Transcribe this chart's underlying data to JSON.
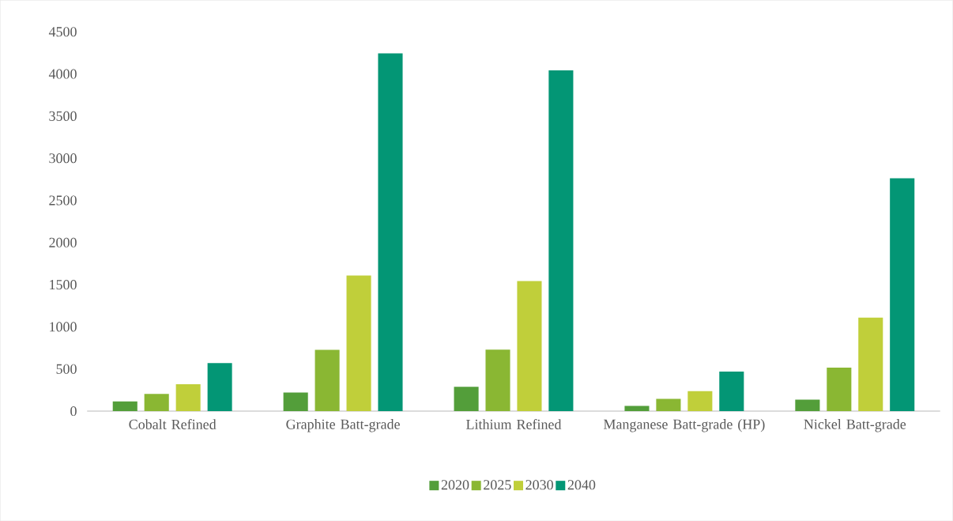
{
  "chart_data": {
    "type": "bar",
    "categories": [
      "Cobalt Refined",
      "Graphite Batt-grade",
      "Lithium Refined",
      "Manganese Batt-grade (HP)",
      "Nickel Batt-grade"
    ],
    "series": [
      {
        "name": "2020",
        "color": "#539e3a",
        "values": [
          115,
          220,
          289,
          62,
          137
        ]
      },
      {
        "name": "2025",
        "color": "#8ab733",
        "values": [
          205,
          727,
          730,
          145,
          516
        ]
      },
      {
        "name": "2030",
        "color": "#c0cf3a",
        "values": [
          320,
          1609,
          1543,
          238,
          1109
        ]
      },
      {
        "name": "2040",
        "color": "#039675",
        "values": [
          569,
          4244,
          4043,
          469,
          2762
        ]
      }
    ],
    "ylim": [
      0,
      4500
    ],
    "yticks": [
      0,
      500,
      1000,
      1500,
      2000,
      2500,
      3000,
      3500,
      4000,
      4500
    ],
    "grid": false,
    "legend": "bottom"
  }
}
